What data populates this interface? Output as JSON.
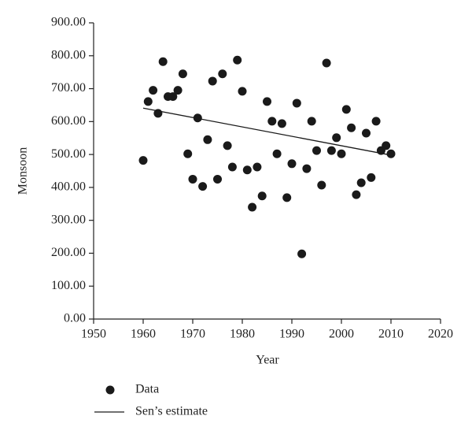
{
  "chart_data": {
    "type": "scatter",
    "x_label": "Year",
    "y_label": "Monsoon",
    "series": [
      {
        "name": "Data",
        "color": "#1a1a1a",
        "style": "markers",
        "x": [
          1960,
          1961,
          1962,
          1963,
          1964,
          1965,
          1966,
          1967,
          1968,
          1969,
          1970,
          1971,
          1972,
          1973,
          1974,
          1975,
          1976,
          1977,
          1978,
          1979,
          1980,
          1981,
          1982,
          1983,
          1984,
          1985,
          1986,
          1987,
          1988,
          1989,
          1990,
          1991,
          1992,
          1993,
          1994,
          1995,
          1996,
          1997,
          1998,
          1999,
          2000,
          2001,
          2002,
          2003,
          2004,
          2005,
          2006,
          2007,
          2008,
          2009,
          2010
        ],
        "values": [
          482,
          661,
          695,
          625,
          782,
          676,
          676,
          695,
          745,
          502,
          425,
          611,
          403,
          545,
          723,
          425,
          745,
          527,
          462,
          787,
          692,
          453,
          340,
          462,
          374,
          661,
          601,
          502,
          594,
          369,
          472,
          656,
          198,
          457,
          601,
          512,
          407,
          778,
          512,
          551,
          502,
          637,
          581,
          378,
          414,
          565,
          430,
          601,
          512,
          527,
          502
        ]
      },
      {
        "name": "Sen’s estimate",
        "color": "#1a1a1a",
        "style": "line",
        "x": [
          1960,
          2010
        ],
        "values": [
          641,
          498
        ]
      }
    ],
    "xlim": [
      1950,
      2020
    ],
    "xticks": [
      1950,
      1960,
      1970,
      1980,
      1990,
      2000,
      2010,
      2020
    ],
    "ylim": [
      0,
      900
    ],
    "yticks": [
      {
        "value": 0,
        "label": "0.00"
      },
      {
        "value": 100,
        "label": "100.00"
      },
      {
        "value": 200,
        "label": "200.00"
      },
      {
        "value": 300,
        "label": "300.00"
      },
      {
        "value": 400,
        "label": "400.00"
      },
      {
        "value": 500,
        "label": "500.00"
      },
      {
        "value": 600,
        "label": "600.00"
      },
      {
        "value": 700,
        "label": "700.00"
      },
      {
        "value": 800,
        "label": "800.00"
      },
      {
        "value": 900,
        "label": "900.00"
      }
    ],
    "legend": "bottom-left"
  }
}
